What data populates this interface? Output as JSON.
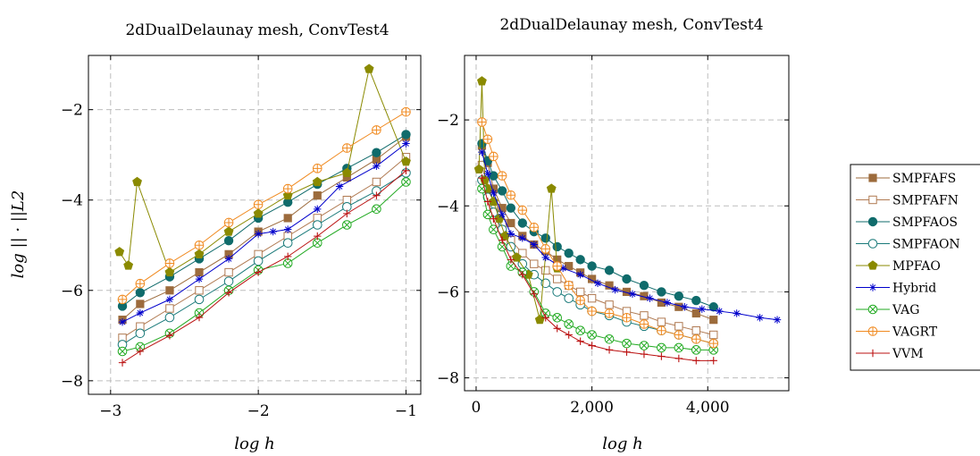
{
  "chart_data": [
    {
      "type": "line",
      "title": "2dDualDelaunay mesh, ConvTest4",
      "xlabel": "log h",
      "ylabel": "log || · ||L2",
      "xlim": [
        -3.15,
        -0.9
      ],
      "ylim": [
        -8.3,
        -0.8
      ],
      "xticks": [
        -3,
        -2,
        -1
      ],
      "xtick_labels": [
        "−3",
        "−2",
        "−1"
      ],
      "yticks": [
        -8,
        -6,
        -4,
        -2
      ],
      "ytick_labels": [
        "−8",
        "−6",
        "−4",
        "−2"
      ],
      "grid": true,
      "series": [
        {
          "name": "SMPFAFS",
          "x": [
            -2.92,
            -2.8,
            -2.6,
            -2.4,
            -2.2,
            -2.0,
            -1.8,
            -1.6,
            -1.4,
            -1.2,
            -1.0
          ],
          "y": [
            -6.65,
            -6.3,
            -6.0,
            -5.6,
            -5.2,
            -4.7,
            -4.4,
            -3.9,
            -3.5,
            -3.1,
            -2.6
          ]
        },
        {
          "name": "SMPFAFN",
          "x": [
            -2.92,
            -2.8,
            -2.6,
            -2.4,
            -2.2,
            -2.0,
            -1.8,
            -1.6,
            -1.4,
            -1.2,
            -1.0
          ],
          "y": [
            -7.05,
            -6.8,
            -6.4,
            -6.0,
            -5.6,
            -5.2,
            -4.8,
            -4.4,
            -4.0,
            -3.6,
            -3.05
          ]
        },
        {
          "name": "SMPFAOS",
          "x": [
            -2.92,
            -2.8,
            -2.6,
            -2.4,
            -2.2,
            -2.0,
            -1.8,
            -1.6,
            -1.4,
            -1.2,
            -1.0
          ],
          "y": [
            -6.35,
            -6.05,
            -5.7,
            -5.3,
            -4.9,
            -4.4,
            -4.05,
            -3.65,
            -3.3,
            -2.95,
            -2.55
          ]
        },
        {
          "name": "SMPFAON",
          "x": [
            -2.92,
            -2.8,
            -2.6,
            -2.4,
            -2.2,
            -2.0,
            -1.8,
            -1.6,
            -1.4,
            -1.2,
            -1.0
          ],
          "y": [
            -7.2,
            -6.95,
            -6.6,
            -6.2,
            -5.8,
            -5.35,
            -4.95,
            -4.55,
            -4.15,
            -3.8,
            -3.4
          ]
        },
        {
          "name": "MPFAO",
          "x": [
            -2.94,
            -2.88,
            -2.82,
            -2.6,
            -2.4,
            -2.2,
            -2.0,
            -1.8,
            -1.6,
            -1.4,
            -1.25,
            -1.0
          ],
          "y": [
            -5.15,
            -5.45,
            -3.6,
            -5.6,
            -5.2,
            -4.7,
            -4.3,
            -3.9,
            -3.6,
            -3.4,
            -1.1,
            -3.15
          ]
        },
        {
          "name": "Hybrid",
          "x": [
            -2.92,
            -2.8,
            -2.6,
            -2.4,
            -2.2,
            -2.0,
            -1.9,
            -1.8,
            -1.6,
            -1.45,
            -1.2,
            -1.0
          ],
          "y": [
            -6.7,
            -6.5,
            -6.2,
            -5.75,
            -5.3,
            -4.75,
            -4.7,
            -4.65,
            -4.2,
            -3.7,
            -3.25,
            -2.75
          ]
        },
        {
          "name": "VAG",
          "x": [
            -2.92,
            -2.8,
            -2.6,
            -2.4,
            -2.2,
            -2.0,
            -1.8,
            -1.6,
            -1.4,
            -1.2,
            -1.0
          ],
          "y": [
            -7.35,
            -7.25,
            -6.95,
            -6.5,
            -6.0,
            -5.55,
            -5.4,
            -4.95,
            -4.55,
            -4.2,
            -3.6
          ]
        },
        {
          "name": "VAGRT",
          "x": [
            -2.92,
            -2.8,
            -2.6,
            -2.4,
            -2.2,
            -2.0,
            -1.8,
            -1.6,
            -1.4,
            -1.2,
            -1.0
          ],
          "y": [
            -6.2,
            -5.85,
            -5.4,
            -5.0,
            -4.5,
            -4.1,
            -3.75,
            -3.3,
            -2.85,
            -2.45,
            -2.05
          ]
        },
        {
          "name": "VVM",
          "x": [
            -2.92,
            -2.8,
            -2.6,
            -2.4,
            -2.2,
            -2.0,
            -1.8,
            -1.6,
            -1.4,
            -1.2,
            -1.0
          ],
          "y": [
            -7.6,
            -7.35,
            -7.0,
            -6.6,
            -6.05,
            -5.6,
            -5.25,
            -4.8,
            -4.3,
            -3.9,
            -3.35
          ]
        }
      ]
    },
    {
      "type": "line",
      "title": "2dDualDelaunay mesh, ConvTest4",
      "xlabel": "log h",
      "ylabel": "",
      "xlim": [
        -200,
        5400
      ],
      "ylim": [
        -8.3,
        -0.5
      ],
      "xticks": [
        0,
        2000,
        4000
      ],
      "xtick_labels": [
        "0",
        "2,000",
        "4,000"
      ],
      "yticks": [
        -8,
        -6,
        -4,
        -2
      ],
      "ytick_labels": [
        "−8",
        "−6",
        "−4",
        "−2"
      ],
      "grid": true,
      "series": [
        {
          "name": "SMPFAFS",
          "x": [
            100,
            200,
            300,
            450,
            600,
            800,
            1000,
            1200,
            1400,
            1600,
            1800,
            2000,
            2300,
            2600,
            2900,
            3200,
            3500,
            3800,
            4100
          ],
          "y": [
            -2.6,
            -3.0,
            -3.6,
            -4.05,
            -4.4,
            -4.7,
            -4.9,
            -5.05,
            -5.25,
            -5.4,
            -5.55,
            -5.7,
            -5.85,
            -6.0,
            -6.1,
            -6.25,
            -6.35,
            -6.5,
            -6.65
          ]
        },
        {
          "name": "SMPFAFN",
          "x": [
            100,
            200,
            300,
            450,
            600,
            800,
            1000,
            1200,
            1400,
            1600,
            1800,
            2000,
            2300,
            2600,
            2900,
            3200,
            3500,
            3800,
            4100
          ],
          "y": [
            -3.05,
            -3.6,
            -4.0,
            -4.4,
            -4.8,
            -5.1,
            -5.35,
            -5.5,
            -5.7,
            -5.85,
            -6.0,
            -6.15,
            -6.3,
            -6.45,
            -6.55,
            -6.7,
            -6.8,
            -6.9,
            -7.0
          ]
        },
        {
          "name": "SMPFAOS",
          "x": [
            100,
            200,
            300,
            450,
            600,
            800,
            1000,
            1200,
            1400,
            1600,
            1800,
            2000,
            2300,
            2600,
            2900,
            3200,
            3500,
            3800,
            4100
          ],
          "y": [
            -2.55,
            -2.95,
            -3.3,
            -3.65,
            -4.05,
            -4.4,
            -4.6,
            -4.75,
            -4.95,
            -5.1,
            -5.25,
            -5.4,
            -5.5,
            -5.7,
            -5.85,
            -6.0,
            -6.1,
            -6.2,
            -6.35
          ]
        },
        {
          "name": "SMPFAON",
          "x": [
            100,
            200,
            300,
            450,
            600,
            800,
            1000,
            1200,
            1400,
            1600,
            1800,
            2000,
            2300,
            2600,
            2900,
            3200,
            3500,
            3800,
            4100
          ],
          "y": [
            -3.4,
            -3.8,
            -4.15,
            -4.55,
            -4.95,
            -5.35,
            -5.6,
            -5.8,
            -6.0,
            -6.15,
            -6.3,
            -6.45,
            -6.55,
            -6.7,
            -6.8,
            -6.9,
            -7.0,
            -7.1,
            -7.2
          ]
        },
        {
          "name": "MPFAO",
          "x": [
            50,
            100,
            150,
            200,
            300,
            400,
            500,
            700,
            900,
            1100,
            1300,
            1400
          ],
          "y": [
            -3.15,
            -1.1,
            -3.4,
            -3.6,
            -3.9,
            -4.3,
            -4.7,
            -5.2,
            -5.6,
            -6.65,
            -3.6,
            -5.45
          ]
        },
        {
          "name": "Hybrid",
          "x": [
            100,
            200,
            300,
            450,
            600,
            800,
            1000,
            1200,
            1500,
            1800,
            2100,
            2400,
            2700,
            3000,
            3300,
            3600,
            3900,
            4200,
            4500,
            4900,
            5200
          ],
          "y": [
            -2.75,
            -3.25,
            -3.7,
            -4.2,
            -4.65,
            -4.75,
            -4.9,
            -5.2,
            -5.45,
            -5.6,
            -5.8,
            -5.95,
            -6.05,
            -6.15,
            -6.25,
            -6.35,
            -6.4,
            -6.45,
            -6.5,
            -6.6,
            -6.65
          ]
        },
        {
          "name": "VAG",
          "x": [
            100,
            200,
            300,
            450,
            600,
            800,
            1000,
            1200,
            1400,
            1600,
            1800,
            2000,
            2300,
            2600,
            2900,
            3200,
            3500,
            3800,
            4100
          ],
          "y": [
            -3.6,
            -4.2,
            -4.55,
            -4.95,
            -5.4,
            -5.55,
            -6.0,
            -6.5,
            -6.6,
            -6.75,
            -6.9,
            -7.0,
            -7.1,
            -7.2,
            -7.25,
            -7.3,
            -7.3,
            -7.35,
            -7.35
          ]
        },
        {
          "name": "VAGRT",
          "x": [
            100,
            200,
            300,
            450,
            600,
            800,
            1000,
            1200,
            1400,
            1600,
            1800,
            2000,
            2300,
            2600,
            2900,
            3200,
            3500,
            3800,
            4100
          ],
          "y": [
            -2.05,
            -2.45,
            -2.85,
            -3.3,
            -3.75,
            -4.1,
            -4.5,
            -5.0,
            -5.4,
            -5.85,
            -6.2,
            -6.45,
            -6.5,
            -6.6,
            -6.75,
            -6.9,
            -7.0,
            -7.1,
            -7.2
          ]
        },
        {
          "name": "VVM",
          "x": [
            100,
            200,
            300,
            450,
            600,
            800,
            1000,
            1200,
            1400,
            1600,
            1800,
            2000,
            2300,
            2600,
            2900,
            3200,
            3500,
            3800,
            4100
          ],
          "y": [
            -3.35,
            -3.9,
            -4.3,
            -4.8,
            -5.25,
            -5.6,
            -6.05,
            -6.6,
            -6.85,
            -7.0,
            -7.15,
            -7.25,
            -7.35,
            -7.4,
            -7.45,
            -7.5,
            -7.55,
            -7.6,
            -7.6
          ]
        }
      ]
    }
  ],
  "styles": [
    {
      "name": "SMPFAFS",
      "color": "#9c6b3c",
      "marker": "square-filled"
    },
    {
      "name": "SMPFAFN",
      "color": "#b07a52",
      "marker": "square-open"
    },
    {
      "name": "SMPFAOS",
      "color": "#0f6b6b",
      "marker": "circle-filled"
    },
    {
      "name": "SMPFAON",
      "color": "#1a7a7a",
      "marker": "circle-open"
    },
    {
      "name": "MPFAO",
      "color": "#8a8a00",
      "marker": "pentagon-filled"
    },
    {
      "name": "Hybrid",
      "color": "#0000cc",
      "marker": "star"
    },
    {
      "name": "VAG",
      "color": "#22aa22",
      "marker": "circle-x"
    },
    {
      "name": "VAGRT",
      "color": "#f08a20",
      "marker": "circle-plus"
    },
    {
      "name": "VVM",
      "color": "#bb1111",
      "marker": "plus"
    }
  ],
  "legend": {
    "placement": "right",
    "entries": [
      "SMPFAFS",
      "SMPFAFN",
      "SMPFAOS",
      "SMPFAON",
      "MPFAO",
      "Hybrid",
      "VAG",
      "VAGRT",
      "VVM"
    ]
  }
}
